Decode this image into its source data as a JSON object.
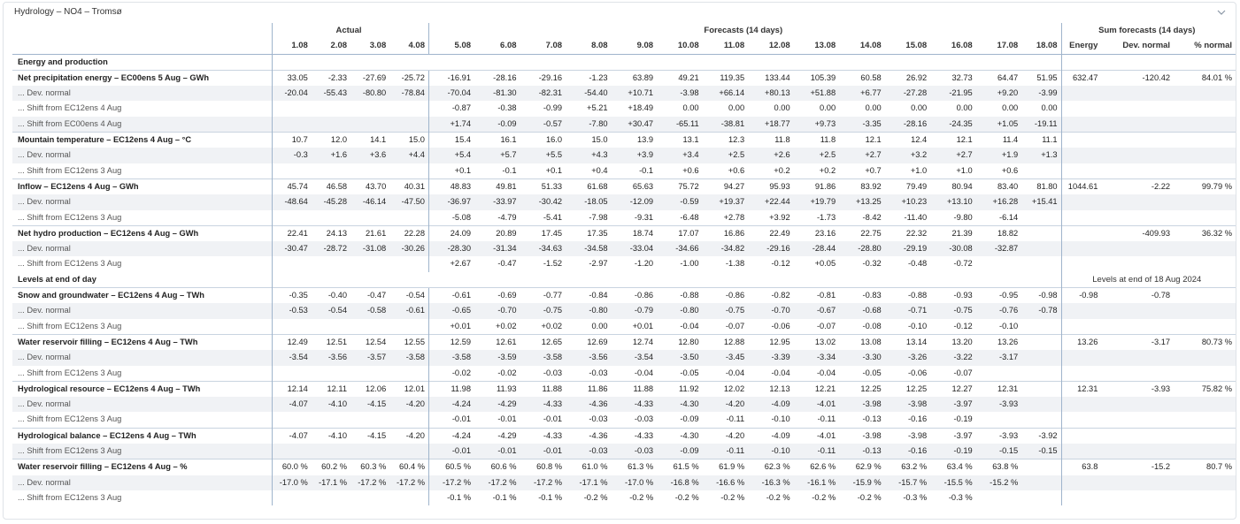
{
  "title": "Hydrology – NO4 – Tromsø",
  "groups": {
    "actual": "Actual",
    "forecasts": "Forecasts (14 days)",
    "sum": "Sum forecasts (14 days)"
  },
  "dates": [
    "1.08",
    "2.08",
    "3.08",
    "4.08",
    "5.08",
    "6.08",
    "7.08",
    "8.08",
    "9.08",
    "10.08",
    "11.08",
    "12.08",
    "13.08",
    "14.08",
    "15.08",
    "16.08",
    "17.08",
    "18.08"
  ],
  "sum_headers": [
    "Energy",
    "Dev. normal",
    "% normal"
  ],
  "levels_note": "Levels at end of 18 Aug 2024",
  "rows": [
    {
      "type": "section",
      "label": "Energy and production"
    },
    {
      "type": "main",
      "label": "Net precipitation energy – EC00ens 5 Aug – GWh",
      "cells": [
        "33.05",
        "-2.33",
        "-27.69",
        "-25.72",
        "-16.91",
        "-28.16",
        "-29.16",
        "-1.23",
        "63.89",
        "49.21",
        "119.35",
        "133.44",
        "105.39",
        "60.58",
        "26.92",
        "32.73",
        "64.47",
        "51.95"
      ],
      "sum": [
        "632.47",
        "-120.42",
        "84.01 %"
      ]
    },
    {
      "type": "sub",
      "label": "... Dev. normal",
      "cells": [
        "-20.04",
        "-55.43",
        "-80.80",
        "-78.84",
        "-70.04",
        "-81.30",
        "-82.31",
        "-54.40",
        "+10.71",
        "-3.98",
        "+66.14",
        "+80.13",
        "+51.88",
        "+6.77",
        "-27.28",
        "-21.95",
        "+9.20",
        "-3.99"
      ],
      "sum": [
        "",
        "",
        ""
      ]
    },
    {
      "type": "sub",
      "label": "... Shift from EC12ens 4 Aug",
      "cells": [
        "",
        "",
        "",
        "",
        "-0.87",
        "-0.38",
        "-0.99",
        "+5.21",
        "+18.49",
        "0.00",
        "0.00",
        "0.00",
        "0.00",
        "0.00",
        "0.00",
        "0.00",
        "0.00",
        "0.00"
      ],
      "sum": [
        "",
        "",
        ""
      ]
    },
    {
      "type": "sub",
      "label": "... Shift from EC00ens 4 Aug",
      "cells": [
        "",
        "",
        "",
        "",
        "+1.74",
        "-0.09",
        "-0.57",
        "-7.80",
        "+30.47",
        "-65.11",
        "-38.81",
        "+18.77",
        "+9.73",
        "-3.35",
        "-28.16",
        "-24.35",
        "+1.05",
        "-19.11"
      ],
      "sum": [
        "",
        "",
        ""
      ]
    },
    {
      "type": "main",
      "label": "Mountain temperature – EC12ens 4 Aug – °C",
      "cells": [
        "10.7",
        "12.0",
        "14.1",
        "15.0",
        "15.4",
        "16.1",
        "16.0",
        "15.0",
        "13.9",
        "13.1",
        "12.3",
        "11.8",
        "11.8",
        "12.1",
        "12.4",
        "12.1",
        "11.4",
        "11.1"
      ],
      "sum": [
        "",
        "",
        ""
      ]
    },
    {
      "type": "sub",
      "label": "... Dev. normal",
      "cells": [
        "-0.3",
        "+1.6",
        "+3.6",
        "+4.4",
        "+5.4",
        "+5.7",
        "+5.5",
        "+4.3",
        "+3.9",
        "+3.4",
        "+2.5",
        "+2.6",
        "+2.5",
        "+2.7",
        "+3.2",
        "+2.7",
        "+1.9",
        "+1.3"
      ],
      "sum": [
        "",
        "",
        ""
      ]
    },
    {
      "type": "sub",
      "label": "... Shift from EC12ens 3 Aug",
      "cells": [
        "",
        "",
        "",
        "",
        "+0.1",
        "-0.1",
        "+0.1",
        "+0.4",
        "-0.1",
        "+0.6",
        "+0.6",
        "+0.2",
        "+0.2",
        "+0.7",
        "+1.0",
        "+1.0",
        "+0.6",
        ""
      ],
      "sum": [
        "",
        "",
        ""
      ]
    },
    {
      "type": "main",
      "label": "Inflow – EC12ens 4 Aug – GWh",
      "cells": [
        "45.74",
        "46.58",
        "43.70",
        "40.31",
        "48.83",
        "49.81",
        "51.33",
        "61.68",
        "65.63",
        "75.72",
        "94.27",
        "95.93",
        "91.86",
        "83.92",
        "79.49",
        "80.94",
        "83.40",
        "81.80"
      ],
      "sum": [
        "1044.61",
        "-2.22",
        "99.79 %"
      ]
    },
    {
      "type": "sub",
      "label": "... Dev. normal",
      "cells": [
        "-48.64",
        "-45.28",
        "-46.14",
        "-47.50",
        "-36.97",
        "-33.97",
        "-30.42",
        "-18.05",
        "-12.09",
        "-0.59",
        "+19.37",
        "+22.44",
        "+19.79",
        "+13.25",
        "+10.23",
        "+13.10",
        "+16.28",
        "+15.41"
      ],
      "sum": [
        "",
        "",
        ""
      ]
    },
    {
      "type": "sub",
      "label": "... Shift from EC12ens 3 Aug",
      "cells": [
        "",
        "",
        "",
        "",
        "-5.08",
        "-4.79",
        "-5.41",
        "-7.98",
        "-9.31",
        "-6.48",
        "+2.78",
        "+3.92",
        "-1.73",
        "-8.42",
        "-11.40",
        "-9.80",
        "-6.14",
        ""
      ],
      "sum": [
        "",
        "",
        ""
      ]
    },
    {
      "type": "main",
      "label": "Net hydro production – EC12ens 4 Aug – GWh",
      "cells": [
        "22.41",
        "24.13",
        "21.61",
        "22.28",
        "24.09",
        "20.89",
        "17.45",
        "17.35",
        "18.74",
        "17.07",
        "16.86",
        "22.49",
        "23.16",
        "22.75",
        "22.32",
        "21.39",
        "18.82",
        ""
      ],
      "sum": [
        "",
        "-409.93",
        "36.32 %"
      ]
    },
    {
      "type": "sub",
      "label": "... Dev. normal",
      "cells": [
        "-30.47",
        "-28.72",
        "-31.08",
        "-30.26",
        "-28.30",
        "-31.34",
        "-34.63",
        "-34.58",
        "-33.04",
        "-34.66",
        "-34.82",
        "-29.16",
        "-28.44",
        "-28.80",
        "-29.19",
        "-30.08",
        "-32.87",
        ""
      ],
      "sum": [
        "",
        "",
        ""
      ]
    },
    {
      "type": "sub",
      "label": "... Shift from EC12ens 3 Aug",
      "cells": [
        "",
        "",
        "",
        "",
        "+2.67",
        "-0.47",
        "-1.52",
        "-2.97",
        "-1.20",
        "-1.00",
        "-1.38",
        "-0.12",
        "+0.05",
        "-0.32",
        "-0.48",
        "-0.72",
        "",
        ""
      ],
      "sum": [
        "",
        "",
        ""
      ]
    },
    {
      "type": "section",
      "label": "Levels at end of day",
      "note": true
    },
    {
      "type": "main",
      "label": "Snow and groundwater – EC12ens 4 Aug – TWh",
      "cells": [
        "-0.35",
        "-0.40",
        "-0.47",
        "-0.54",
        "-0.61",
        "-0.69",
        "-0.77",
        "-0.84",
        "-0.86",
        "-0.88",
        "-0.86",
        "-0.82",
        "-0.81",
        "-0.83",
        "-0.88",
        "-0.93",
        "-0.95",
        "-0.98"
      ],
      "sum": [
        "-0.98",
        "-0.78",
        ""
      ]
    },
    {
      "type": "sub",
      "label": "... Dev. normal",
      "cells": [
        "-0.53",
        "-0.54",
        "-0.58",
        "-0.61",
        "-0.65",
        "-0.70",
        "-0.75",
        "-0.80",
        "-0.79",
        "-0.80",
        "-0.75",
        "-0.70",
        "-0.67",
        "-0.68",
        "-0.71",
        "-0.75",
        "-0.76",
        "-0.78"
      ],
      "sum": [
        "",
        "",
        ""
      ]
    },
    {
      "type": "sub",
      "label": "... Shift from EC12ens 3 Aug",
      "cells": [
        "",
        "",
        "",
        "",
        "+0.01",
        "+0.02",
        "+0.02",
        "0.00",
        "+0.01",
        "-0.04",
        "-0.07",
        "-0.06",
        "-0.07",
        "-0.08",
        "-0.10",
        "-0.12",
        "-0.10",
        ""
      ],
      "sum": [
        "",
        "",
        ""
      ]
    },
    {
      "type": "main",
      "label": "Water reservoir filling – EC12ens 4 Aug – TWh",
      "cells": [
        "12.49",
        "12.51",
        "12.54",
        "12.55",
        "12.59",
        "12.61",
        "12.65",
        "12.69",
        "12.74",
        "12.80",
        "12.88",
        "12.95",
        "13.02",
        "13.08",
        "13.14",
        "13.20",
        "13.26",
        ""
      ],
      "sum": [
        "13.26",
        "-3.17",
        "80.73 %"
      ]
    },
    {
      "type": "sub",
      "label": "... Dev. normal",
      "cells": [
        "-3.54",
        "-3.56",
        "-3.57",
        "-3.58",
        "-3.58",
        "-3.59",
        "-3.58",
        "-3.56",
        "-3.54",
        "-3.50",
        "-3.45",
        "-3.39",
        "-3.34",
        "-3.30",
        "-3.26",
        "-3.22",
        "-3.17",
        ""
      ],
      "sum": [
        "",
        "",
        ""
      ]
    },
    {
      "type": "sub",
      "label": "... Shift from EC12ens 3 Aug",
      "cells": [
        "",
        "",
        "",
        "",
        "-0.02",
        "-0.02",
        "-0.03",
        "-0.03",
        "-0.04",
        "-0.05",
        "-0.04",
        "-0.04",
        "-0.04",
        "-0.05",
        "-0.06",
        "-0.07",
        "",
        ""
      ],
      "sum": [
        "",
        "",
        ""
      ]
    },
    {
      "type": "main",
      "label": "Hydrological resource – EC12ens 4 Aug – TWh",
      "cells": [
        "12.14",
        "12.11",
        "12.06",
        "12.01",
        "11.98",
        "11.93",
        "11.88",
        "11.86",
        "11.88",
        "11.92",
        "12.02",
        "12.13",
        "12.21",
        "12.25",
        "12.25",
        "12.27",
        "12.31",
        ""
      ],
      "sum": [
        "12.31",
        "-3.93",
        "75.82 %"
      ]
    },
    {
      "type": "sub",
      "label": "... Dev. normal",
      "cells": [
        "-4.07",
        "-4.10",
        "-4.15",
        "-4.20",
        "-4.24",
        "-4.29",
        "-4.33",
        "-4.36",
        "-4.33",
        "-4.30",
        "-4.20",
        "-4.09",
        "-4.01",
        "-3.98",
        "-3.98",
        "-3.97",
        "-3.93",
        ""
      ],
      "sum": [
        "",
        "",
        ""
      ]
    },
    {
      "type": "sub",
      "label": "... Shift from EC12ens 3 Aug",
      "cells": [
        "",
        "",
        "",
        "",
        "-0.01",
        "-0.01",
        "-0.01",
        "-0.03",
        "-0.03",
        "-0.09",
        "-0.11",
        "-0.10",
        "-0.11",
        "-0.13",
        "-0.16",
        "-0.19",
        "",
        ""
      ],
      "sum": [
        "",
        "",
        ""
      ]
    },
    {
      "type": "main",
      "label": "Hydrological balance – EC12ens 4 Aug – TWh",
      "cells": [
        "-4.07",
        "-4.10",
        "-4.15",
        "-4.20",
        "-4.24",
        "-4.29",
        "-4.33",
        "-4.36",
        "-4.33",
        "-4.30",
        "-4.20",
        "-4.09",
        "-4.01",
        "-3.98",
        "-3.98",
        "-3.97",
        "-3.93",
        "-3.92"
      ],
      "sum": [
        "",
        "",
        ""
      ]
    },
    {
      "type": "sub",
      "label": "... Shift from EC12ens 3 Aug",
      "cells": [
        "",
        "",
        "",
        "",
        "-0.01",
        "-0.01",
        "-0.01",
        "-0.03",
        "-0.03",
        "-0.09",
        "-0.11",
        "-0.10",
        "-0.11",
        "-0.13",
        "-0.16",
        "-0.19",
        "-0.15",
        "-0.15"
      ],
      "sum": [
        "",
        "",
        ""
      ]
    },
    {
      "type": "main",
      "label": "Water reservoir filling – EC12ens 4 Aug – %",
      "cells": [
        "60.0 %",
        "60.2 %",
        "60.3 %",
        "60.4 %",
        "60.5 %",
        "60.6 %",
        "60.8 %",
        "61.0 %",
        "61.3 %",
        "61.5 %",
        "61.9 %",
        "62.3 %",
        "62.6 %",
        "62.9 %",
        "63.2 %",
        "63.4 %",
        "63.8 %",
        ""
      ],
      "sum": [
        "63.8",
        "-15.2",
        "80.7 %"
      ]
    },
    {
      "type": "sub",
      "label": "... Dev. normal",
      "cells": [
        "-17.0 %",
        "-17.1 %",
        "-17.2 %",
        "-17.2 %",
        "-17.2 %",
        "-17.2 %",
        "-17.2 %",
        "-17.1 %",
        "-17.0 %",
        "-16.8 %",
        "-16.6 %",
        "-16.3 %",
        "-16.1 %",
        "-15.9 %",
        "-15.7 %",
        "-15.5 %",
        "-15.2 %",
        ""
      ],
      "sum": [
        "",
        "",
        ""
      ]
    },
    {
      "type": "sub",
      "label": "... Shift from EC12ens 3 Aug",
      "cells": [
        "",
        "",
        "",
        "",
        "-0.1 %",
        "-0.1 %",
        "-0.1 %",
        "-0.2 %",
        "-0.2 %",
        "-0.2 %",
        "-0.2 %",
        "-0.2 %",
        "-0.2 %",
        "-0.2 %",
        "-0.3 %",
        "-0.3 %",
        "",
        ""
      ],
      "sum": [
        "",
        "",
        ""
      ]
    }
  ]
}
